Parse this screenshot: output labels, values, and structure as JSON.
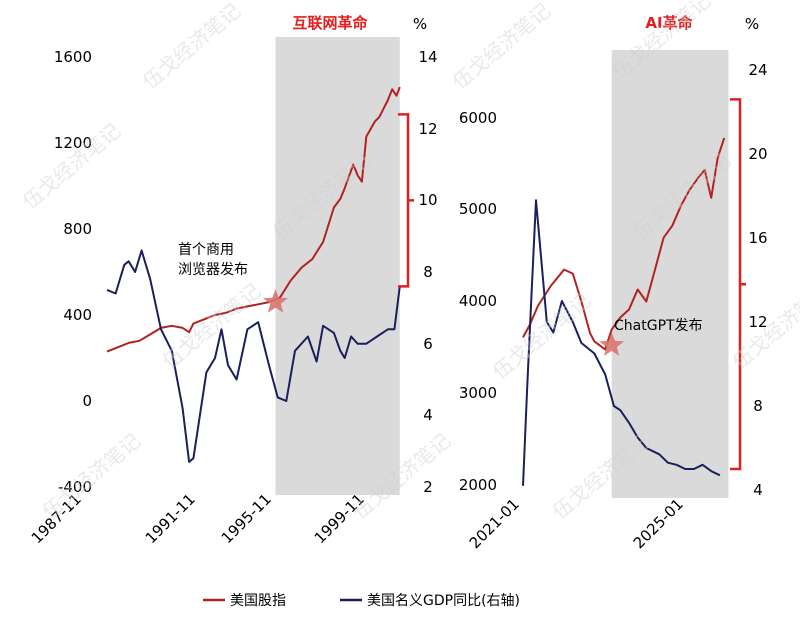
{
  "chart_data": [
    {
      "type": "line",
      "shaded_label": "互联网革命",
      "right_unit": "%",
      "annotation": "首个商用\n浏览器发布",
      "x_ticks": [
        "1987-11",
        "1991-11",
        "1995-11",
        "1999-11"
      ],
      "left_axis": {
        "ticks": [
          "1600",
          "1200",
          "800",
          "400",
          "0",
          "-400"
        ],
        "ylim": [
          -400,
          1600
        ]
      },
      "right_axis": {
        "ticks": [
          "14",
          "12",
          "10",
          "8",
          "6",
          "4",
          "2"
        ],
        "ylim": [
          2,
          14
        ]
      },
      "x_range": [
        1987.0,
        2000.7
      ],
      "shade_range": [
        1994.8,
        2000.55
      ],
      "bracket_right": [
        7.6,
        12.4
      ],
      "marker": {
        "x": 1994.8,
        "y": 460,
        "axis": "left"
      },
      "series": [
        {
          "name": "美国股指",
          "axis": "left",
          "color": "#B22222",
          "x": [
            1987.0,
            1987.5,
            1988.0,
            1988.5,
            1989.0,
            1989.5,
            1990.0,
            1990.5,
            1990.8,
            1991.0,
            1991.5,
            1992.0,
            1992.5,
            1993.0,
            1993.5,
            1994.0,
            1994.5,
            1995.0,
            1995.5,
            1996.0,
            1996.5,
            1997.0,
            1997.5,
            1997.8,
            1998.0,
            1998.4,
            1998.6,
            1998.8,
            1999.0,
            1999.4,
            1999.6,
            1999.8,
            2000.0,
            2000.2,
            2000.4,
            2000.55
          ],
          "values": [
            230,
            250,
            270,
            280,
            310,
            340,
            350,
            340,
            320,
            360,
            380,
            400,
            410,
            430,
            440,
            450,
            460,
            480,
            560,
            620,
            660,
            740,
            900,
            940,
            990,
            1100,
            1050,
            1020,
            1230,
            1300,
            1320,
            1360,
            1400,
            1450,
            1420,
            1460
          ]
        },
        {
          "name": "美国名义GDP同比(右轴)",
          "axis": "right",
          "color": "#1B1F5C",
          "x": [
            1987.0,
            1987.4,
            1987.8,
            1988.0,
            1988.3,
            1988.6,
            1989.0,
            1989.5,
            1990.0,
            1990.5,
            1990.8,
            1991.0,
            1991.3,
            1991.6,
            1992.0,
            1992.3,
            1992.6,
            1993.0,
            1993.5,
            1994.0,
            1994.5,
            1994.9,
            1995.3,
            1995.7,
            1996.0,
            1996.3,
            1996.7,
            1997.0,
            1997.5,
            1997.8,
            1998.0,
            1998.3,
            1998.6,
            1999.0,
            1999.5,
            2000.0,
            2000.3,
            2000.55
          ],
          "values": [
            7.5,
            7.4,
            8.2,
            8.3,
            8.0,
            8.6,
            7.8,
            6.4,
            5.8,
            4.2,
            2.7,
            2.8,
            4.0,
            5.2,
            5.6,
            6.4,
            5.4,
            5.0,
            6.4,
            6.6,
            5.4,
            4.5,
            4.4,
            5.8,
            6.0,
            6.2,
            5.5,
            6.5,
            6.3,
            5.8,
            5.6,
            6.2,
            6.0,
            6.0,
            6.2,
            6.4,
            6.4,
            7.6
          ]
        }
      ]
    },
    {
      "type": "line",
      "shaded_label": "AI革命",
      "right_unit": "%",
      "annotation": "ChatGPT发布",
      "x_ticks": [
        "2021-01",
        "2025-01"
      ],
      "left_axis": {
        "ticks": [
          "6000",
          "5000",
          "4000",
          "3000",
          "2000"
        ],
        "ylim": [
          2000,
          6600
        ]
      },
      "right_axis": {
        "ticks": [
          "24",
          "20",
          "16",
          "12",
          "8",
          "4"
        ],
        "ylim": [
          4,
          24
        ]
      },
      "x_range": [
        2020.85,
        2025.75
      ],
      "shade_range": [
        2022.9,
        2025.6
      ],
      "bracket_right": [
        5.0,
        22.6
      ],
      "marker": {
        "x": 2022.9,
        "y": 3750,
        "axis": "left"
      },
      "series": [
        {
          "name": "美国股指",
          "axis": "left",
          "color": "#B22222",
          "x": [
            2020.85,
            2021.0,
            2021.2,
            2021.5,
            2021.8,
            2022.0,
            2022.2,
            2022.4,
            2022.5,
            2022.75,
            2022.9,
            2023.1,
            2023.3,
            2023.5,
            2023.7,
            2023.9,
            2024.1,
            2024.3,
            2024.5,
            2024.7,
            2024.9,
            2025.05,
            2025.2,
            2025.35,
            2025.5
          ],
          "values": [
            3850,
            4000,
            4250,
            4500,
            4700,
            4650,
            4300,
            3900,
            3800,
            3700,
            3950,
            4100,
            4200,
            4450,
            4300,
            4700,
            5100,
            5250,
            5500,
            5700,
            5850,
            5950,
            5600,
            6100,
            6350
          ]
        },
        {
          "name": "美国名义GDP同比(右轴)",
          "axis": "right",
          "color": "#1B1F5C",
          "x": [
            2020.85,
            2020.95,
            2021.05,
            2021.15,
            2021.25,
            2021.4,
            2021.55,
            2021.75,
            2022.0,
            2022.2,
            2022.5,
            2022.75,
            2022.95,
            2023.1,
            2023.3,
            2023.5,
            2023.7,
            2024.0,
            2024.2,
            2024.4,
            2024.6,
            2024.8,
            2025.0,
            2025.2,
            2025.4
          ],
          "values": [
            4.2,
            9.0,
            13.5,
            17.8,
            15.5,
            12.0,
            11.5,
            13.0,
            12.0,
            11.0,
            10.5,
            9.5,
            8.0,
            7.8,
            7.2,
            6.5,
            6.0,
            5.7,
            5.3,
            5.2,
            5.0,
            5.0,
            5.2,
            4.9,
            4.7
          ]
        }
      ]
    }
  ],
  "legend": [
    {
      "label": "美国股指",
      "color": "#B22222"
    },
    {
      "label": "美国名义GDP同比(右轴)",
      "color": "#1B1F5C"
    }
  ],
  "watermark": "伍戈经济笔记",
  "colors": {
    "shade": "#DADADA",
    "accent": "#E02020",
    "star": "#D9736F"
  }
}
